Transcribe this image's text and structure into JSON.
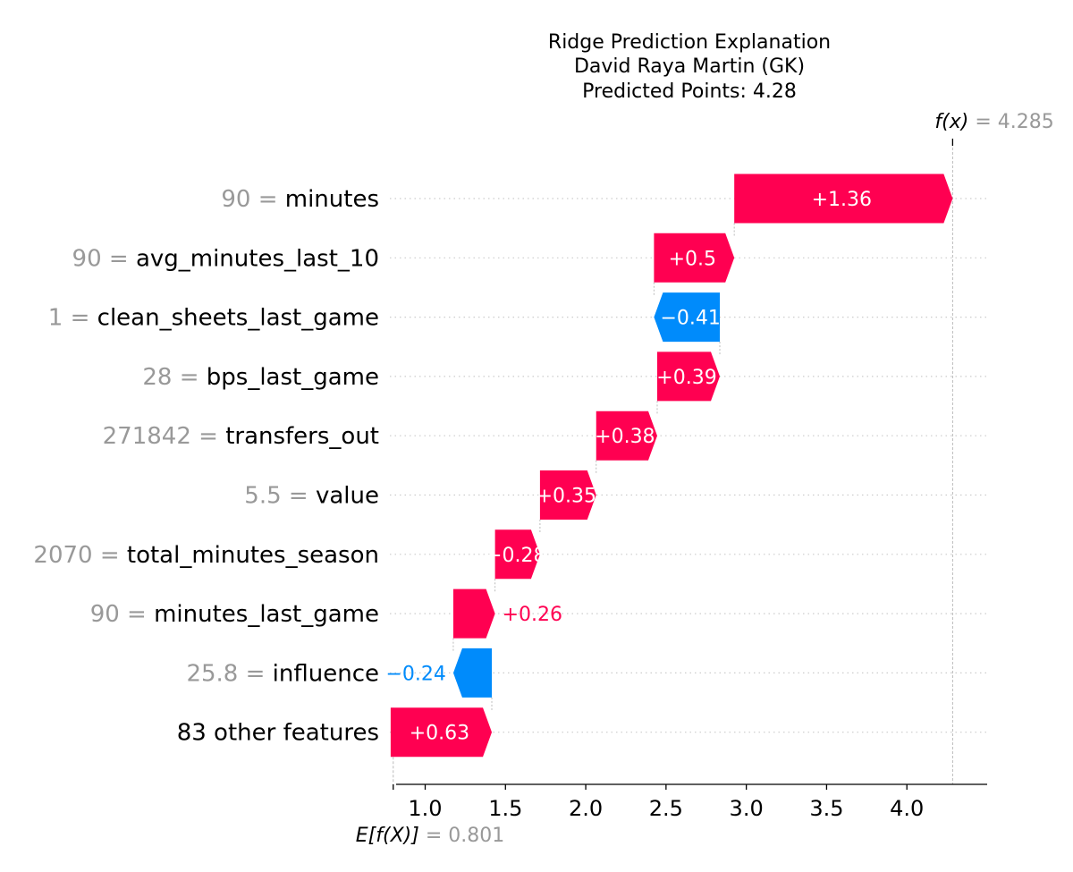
{
  "chart_data": {
    "type": "bar",
    "subtype": "waterfall",
    "title_lines": [
      "Ridge Prediction Explanation",
      "David Raya Martin (GK)",
      "Predicted Points: 4.28"
    ],
    "fx": {
      "label": "f(x)",
      "equals": "=",
      "value_text": "4.285",
      "value": 4.285
    },
    "base": {
      "label": "E[f(X)]",
      "equals": "=",
      "value_text": "0.801",
      "value": 0.801
    },
    "xlim": [
      0.78,
      4.5
    ],
    "xticks": [
      1.0,
      1.5,
      2.0,
      2.5,
      3.0,
      3.5,
      4.0
    ],
    "xtick_labels": [
      "1.0",
      "1.5",
      "2.0",
      "2.5",
      "3.0",
      "3.5",
      "4.0"
    ],
    "features": [
      {
        "value_text": "90",
        "equals": "=",
        "name": "minutes",
        "contribution": 1.36,
        "label": "+1.36",
        "start": 2.925,
        "end": 4.285
      },
      {
        "value_text": "90",
        "equals": "=",
        "name": "avg_minutes_last_10",
        "contribution": 0.5,
        "label": "+0.5",
        "start": 2.425,
        "end": 2.925
      },
      {
        "value_text": "1",
        "equals": "=",
        "name": "clean_sheets_last_game",
        "contribution": -0.41,
        "label": "−0.41",
        "start": 2.835,
        "end": 2.425
      },
      {
        "value_text": "28",
        "equals": "=",
        "name": "bps_last_game",
        "contribution": 0.39,
        "label": "+0.39",
        "start": 2.445,
        "end": 2.835
      },
      {
        "value_text": "271842",
        "equals": "=",
        "name": "transfers_out",
        "contribution": 0.38,
        "label": "+0.38",
        "start": 2.065,
        "end": 2.445
      },
      {
        "value_text": "5.5",
        "equals": "=",
        "name": "value",
        "contribution": 0.35,
        "label": "+0.35",
        "start": 1.715,
        "end": 2.065
      },
      {
        "value_text": "2070",
        "equals": "=",
        "name": "total_minutes_season",
        "contribution": 0.28,
        "label": "+0.28",
        "start": 1.435,
        "end": 1.715
      },
      {
        "value_text": "90",
        "equals": "=",
        "name": "minutes_last_game",
        "contribution": 0.26,
        "label": "+0.26",
        "start": 1.175,
        "end": 1.435
      },
      {
        "value_text": "25.8",
        "equals": "=",
        "name": "influence",
        "contribution": -0.24,
        "label": "−0.24",
        "start": 1.415,
        "end": 1.175
      },
      {
        "value_text": "",
        "equals": "",
        "name": "83 other features",
        "contribution": 0.63,
        "label": "+0.63",
        "start": 0.785,
        "end": 1.415
      }
    ],
    "colors": {
      "positive": "#ff0051",
      "negative": "#008bfb",
      "value_gray": "#999999",
      "grid": "#cccccc",
      "axis": "#000000"
    }
  }
}
